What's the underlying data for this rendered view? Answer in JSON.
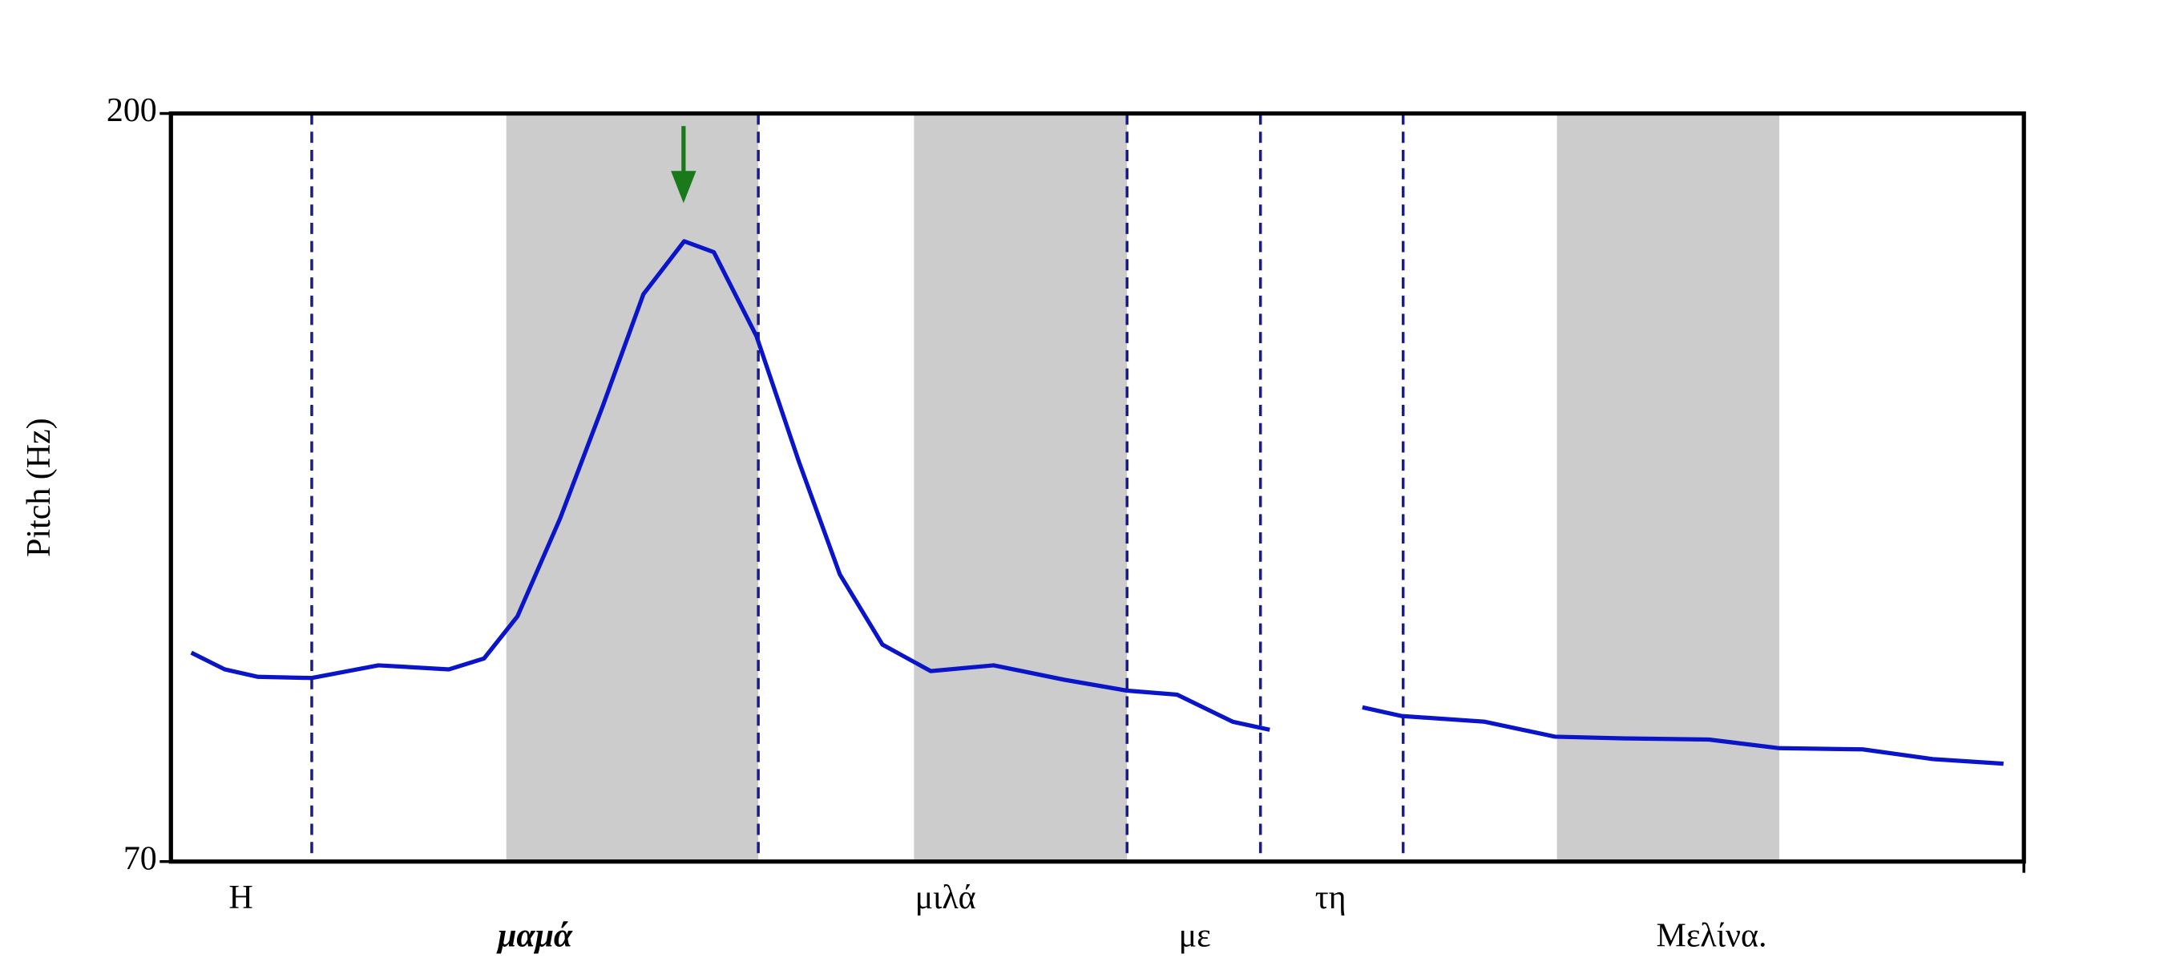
{
  "chart_data": {
    "type": "line",
    "y_label": "Pitch (Hz)",
    "ylim": [
      70,
      200
    ],
    "yticks": [
      70,
      200
    ],
    "xlim": [
      0,
      100
    ],
    "x": [
      1.1,
      2.9,
      4.7,
      7.6,
      11.2,
      15.0,
      16.9,
      18.7,
      21.0,
      23.3,
      25.5,
      27.7,
      29.3,
      31.6,
      33.9,
      36.1,
      38.4,
      41.0,
      44.4,
      48.2,
      51.6,
      54.3,
      57.3,
      59.3,
      62.0,
      64.3,
      66.4,
      70.9,
      74.7,
      78.5,
      83.0,
      86.8,
      91.3,
      95.1,
      98.9
    ],
    "series": [
      {
        "color": "#0a14c8",
        "values": [
          106.3,
          103.4,
          102.1,
          101.9,
          104.1,
          103.4,
          105.3,
          112.6,
          129.6,
          149.1,
          168.6,
          177.8,
          175.9,
          161.3,
          139.4,
          119.9,
          107.7,
          103.1,
          104.1,
          101.6,
          99.7,
          99.0,
          94.3,
          92.9,
          null,
          96.8,
          95.3,
          94.3,
          91.7,
          91.4,
          91.2,
          89.7,
          89.5,
          87.8,
          87.0
        ]
      }
    ],
    "shaded": [
      [
        18.1,
        31.7
      ],
      [
        40.1,
        51.6
      ],
      [
        74.8,
        86.8
      ]
    ],
    "boundaries": [
      7.6,
      31.7,
      51.6,
      58.8,
      66.5
    ],
    "words": [
      "Η",
      "μαμά",
      "μιλά",
      "με",
      "τη",
      "Μελίνα."
    ]
  }
}
